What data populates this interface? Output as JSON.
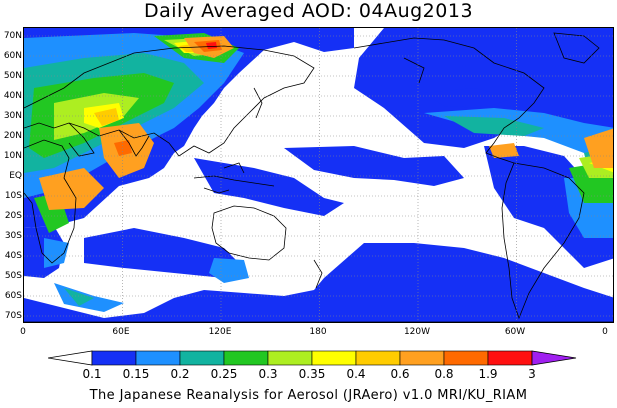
{
  "title": "Daily Averaged AOD: 04Aug2013",
  "credit": "The Japanese Reanalysis for Aerosol (JRAero) v1.0 MRI/KU_RIAM",
  "lat_labels": [
    "70N",
    "60N",
    "50N",
    "40N",
    "30N",
    "20N",
    "10N",
    "EQ",
    "10S",
    "20S",
    "30S",
    "40S",
    "50S",
    "60S",
    "70S"
  ],
  "lon_labels": [
    "0",
    "60E",
    "120E",
    "180",
    "120W",
    "60W",
    "0"
  ],
  "colorbar": {
    "labels": [
      "0.1",
      "0.15",
      "0.2",
      "0.25",
      "0.3",
      "0.35",
      "0.4",
      "0.6",
      "0.8",
      "1.9",
      "3"
    ],
    "colors": [
      "#ffffff",
      "#1530f5",
      "#1e90ff",
      "#12b3a0",
      "#22c722",
      "#adee21",
      "#ffff00",
      "#ffcc00",
      "#ffa020",
      "#ff6a00",
      "#ff1010",
      "#a020f0"
    ]
  }
}
